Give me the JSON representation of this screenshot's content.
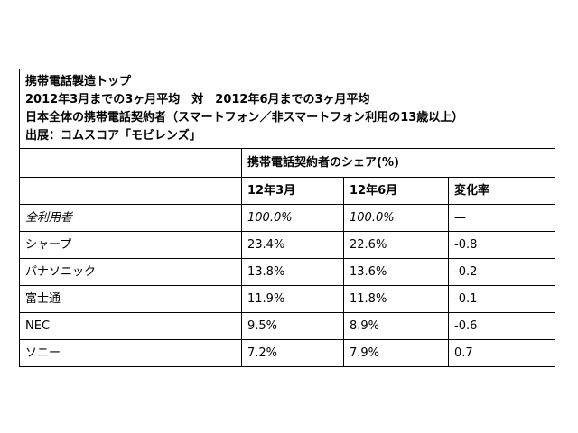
{
  "header": {
    "title": "携帯電話製造トップ",
    "period": "2012年3月までの3ヶ月平均　対　2012年6月までの3ヶ月平均",
    "subject": "日本全体の携帯電話契約者（スマートフォン／非スマートフォン利用の13歳以上）",
    "source": "出展：コムスコア「モビレンズ」"
  },
  "table": {
    "group_header": "携帯電話契約者のシェア(%)",
    "columns": [
      "",
      "12年3月",
      "12年6月",
      "変化率"
    ],
    "rows": [
      {
        "name": "全利用者",
        "mar": "100.0%",
        "jun": "100.0%",
        "change": "—"
      },
      {
        "name": "シャープ",
        "mar": "23.4%",
        "jun": "22.6%",
        "change": "-0.8"
      },
      {
        "name": "パナソニック",
        "mar": "13.8%",
        "jun": "13.6%",
        "change": "-0.2"
      },
      {
        "name": "富士通",
        "mar": "11.9%",
        "jun": "11.8%",
        "change": "-0.1"
      },
      {
        "name": "NEC",
        "mar": "9.5%",
        "jun": "8.9%",
        "change": "-0.6"
      },
      {
        "name": "ソニー",
        "mar": "7.2%",
        "jun": "7.9%",
        "change": "0.7"
      }
    ]
  }
}
